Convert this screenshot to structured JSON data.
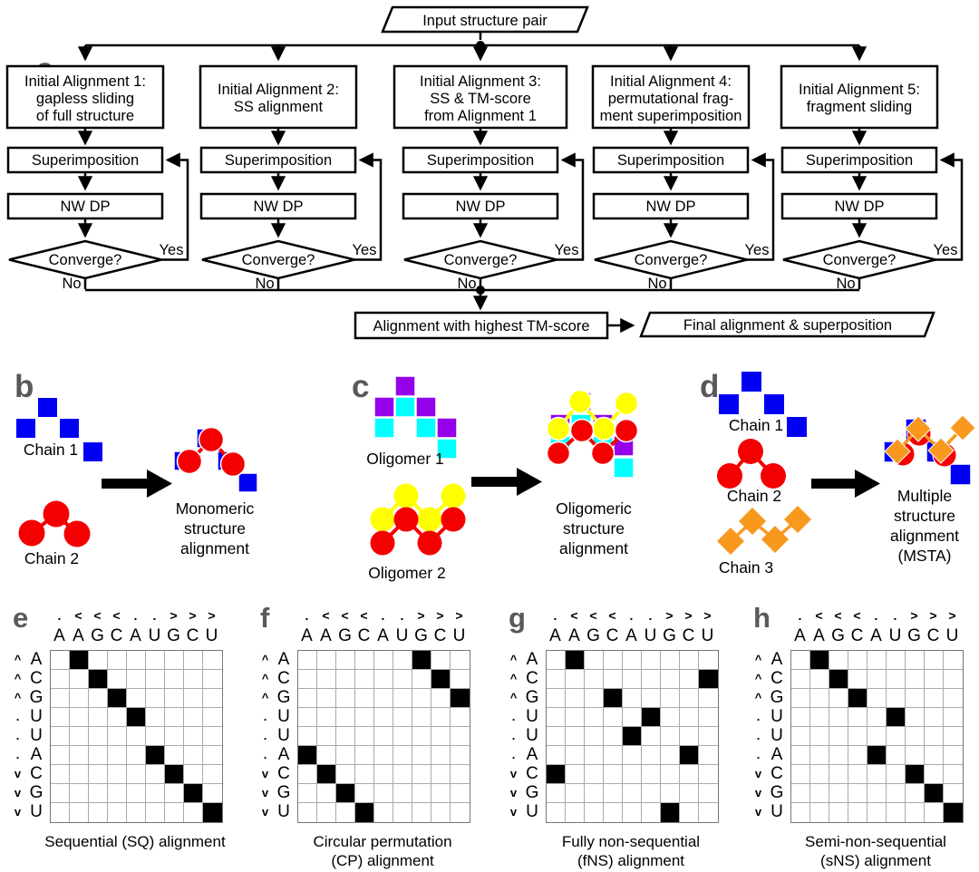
{
  "colors": {
    "blue": "#0000f5",
    "red": "#f40000",
    "purple": "#9400ea",
    "cyan": "#00ffff",
    "yellow": "#ffff00",
    "orange": "#f8981d",
    "panel_letter": "#595959",
    "line": "#000000",
    "grid_line": "#aaaaaa"
  },
  "flowchart": {
    "panel_letter": "a",
    "input_label": "Input structure pair",
    "superimposition_label": "Superimposition",
    "nwdp_label": "NW DP",
    "converge_label": "Converge?",
    "yes_label": "Yes",
    "no_label": "No",
    "highest_label": "Alignment with highest TM-score",
    "final_label": "Final alignment & superposition",
    "branches": [
      {
        "lines": [
          "Initial Alignment 1:",
          "gapless sliding",
          "of full structure"
        ]
      },
      {
        "lines": [
          "Initial Alignment 2:",
          "SS alignment"
        ]
      },
      {
        "lines": [
          "Initial Alignment 3:",
          "SS & TM-score",
          "from Alignment 1"
        ]
      },
      {
        "lines": [
          "Initial Alignment 4:",
          "permutational frag-",
          "ment superimposition"
        ]
      },
      {
        "lines": [
          "Initial Alignment 5:",
          "fragment sliding"
        ]
      }
    ]
  },
  "panel_b": {
    "letter": "b",
    "chain1_label": "Chain 1",
    "chain2_label": "Chain 2",
    "caption": {
      "l1": "Monomeric",
      "l2": "structure",
      "l3": "alignment"
    }
  },
  "panel_c": {
    "letter": "c",
    "oligomer1_label": "Oligomer 1",
    "oligomer2_label": "Oligomer 2",
    "caption": {
      "l1": "Oligomeric",
      "l2": "structure",
      "l3": "alignment"
    }
  },
  "panel_d": {
    "letter": "d",
    "chain1_label": "Chain 1",
    "chain2_label": "Chain 2",
    "chain3_label": "Chain 3",
    "caption": {
      "l1": "Multiple",
      "l2": "structure",
      "l3": "alignment",
      "l4": "(MSTA)"
    }
  },
  "matrices": {
    "col_symbols": [
      ".",
      "<",
      "<",
      "<",
      ".",
      ".",
      ">",
      ">",
      ">"
    ],
    "col_labels": [
      "A",
      "A",
      "G",
      "C",
      "A",
      "U",
      "G",
      "C",
      "U"
    ],
    "row_symbols": [
      "^",
      "^",
      "^",
      ".",
      ".",
      ".",
      "v",
      "v",
      "v"
    ],
    "row_labels": [
      "A",
      "C",
      "G",
      "U",
      "U",
      "A",
      "C",
      "G",
      "U"
    ],
    "panels": [
      {
        "letter": "e",
        "caption": [
          "Sequential (SQ) alignment"
        ],
        "filled": [
          [
            0,
            1
          ],
          [
            1,
            2
          ],
          [
            2,
            3
          ],
          [
            3,
            4
          ],
          [
            5,
            5
          ],
          [
            6,
            6
          ],
          [
            7,
            7
          ],
          [
            8,
            8
          ]
        ]
      },
      {
        "letter": "f",
        "caption": [
          "Circular permutation",
          "(CP) alignment"
        ],
        "filled": [
          [
            0,
            6
          ],
          [
            1,
            7
          ],
          [
            2,
            8
          ],
          [
            5,
            0
          ],
          [
            6,
            1
          ],
          [
            7,
            2
          ],
          [
            8,
            3
          ]
        ]
      },
      {
        "letter": "g",
        "caption": [
          "Fully non-sequential",
          "(fNS) alignment"
        ],
        "filled": [
          [
            0,
            1
          ],
          [
            1,
            8
          ],
          [
            2,
            3
          ],
          [
            3,
            5
          ],
          [
            4,
            4
          ],
          [
            5,
            7
          ],
          [
            6,
            0
          ],
          [
            8,
            6
          ]
        ]
      },
      {
        "letter": "h",
        "caption": [
          "Semi-non-sequential",
          "(sNS) alignment"
        ],
        "filled": [
          [
            0,
            1
          ],
          [
            1,
            2
          ],
          [
            2,
            3
          ],
          [
            3,
            5
          ],
          [
            5,
            4
          ],
          [
            6,
            6
          ],
          [
            7,
            7
          ],
          [
            8,
            8
          ]
        ]
      }
    ]
  }
}
